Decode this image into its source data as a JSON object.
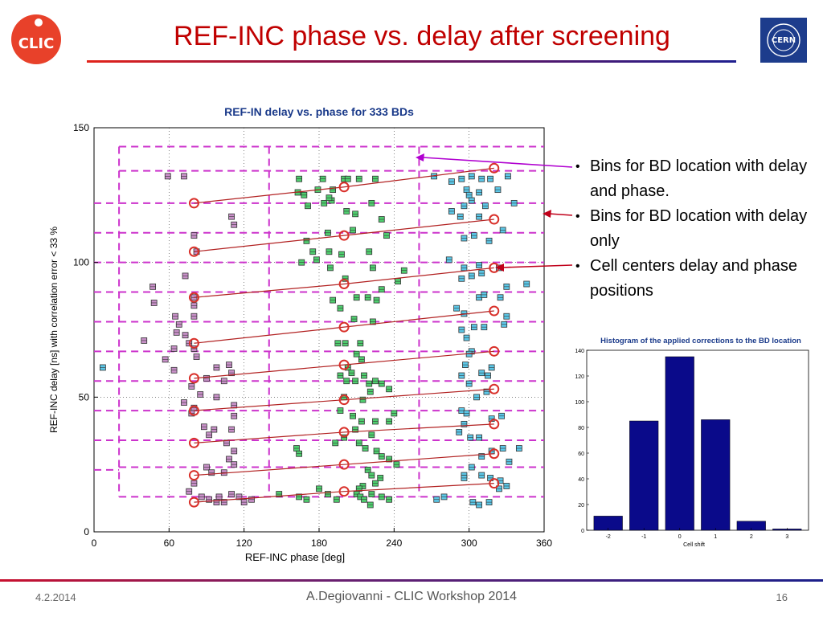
{
  "slide": {
    "title": "REF-INC phase vs. delay after screening",
    "bullets": [
      "Bins for BD location with delay and phase.",
      "Bins for BD location with delay only",
      "Cell centers delay and phase positions"
    ],
    "footer": {
      "date": "4.2.2014",
      "center": "A.Degiovanni - CLIC Workshop 2014",
      "page": "16"
    },
    "logos": {
      "left": "clic-logo",
      "left_text": "CLIC",
      "right": "cern-logo",
      "right_text": "CERN"
    }
  },
  "colors": {
    "title": "#c00000",
    "grid_dash": "#cc33cc",
    "cell_line": "#b22222",
    "cell_center": "#d9302a",
    "points_pink": "#c890c8",
    "points_green": "#4fcf6f",
    "points_cyan": "#5cc8e8",
    "bar": "#0a0a8a",
    "chart_title": "#1a3a8a",
    "arrow_violet": "#b000d0",
    "arrow_red": "#c0001a"
  },
  "chart_data": [
    {
      "type": "scatter",
      "title": "REF-IN delay vs. phase for 333 BDs",
      "xlabel": "REF-INC phase [deg]",
      "ylabel": "REF-INC delay [ns] with correlation error < 33 %",
      "xlim": [
        0,
        360
      ],
      "ylim": [
        0,
        150
      ],
      "xticks": [
        0,
        60,
        120,
        180,
        240,
        300,
        360
      ],
      "yticks": [
        0,
        50,
        100,
        150
      ],
      "grid": true,
      "phase_bin_edges": [
        20,
        140,
        260
      ],
      "delay_bin_edges": [
        13,
        24,
        34,
        45,
        56,
        67,
        78,
        89,
        100,
        111,
        122,
        134,
        143
      ],
      "cell_centers": [
        [
          [
            80,
            11
          ],
          [
            200,
            15
          ],
          [
            320,
            18
          ]
        ],
        [
          [
            80,
            21
          ],
          [
            200,
            25
          ],
          [
            320,
            29
          ]
        ],
        [
          [
            80,
            33
          ],
          [
            200,
            37
          ],
          [
            320,
            40
          ]
        ],
        [
          [
            80,
            45
          ],
          [
            200,
            49
          ],
          [
            320,
            53
          ]
        ],
        [
          [
            80,
            57
          ],
          [
            200,
            62
          ],
          [
            320,
            67
          ]
        ],
        [
          [
            80,
            70
          ],
          [
            200,
            76
          ],
          [
            320,
            82
          ]
        ],
        [
          [
            80,
            87
          ],
          [
            200,
            92
          ],
          [
            320,
            98
          ]
        ],
        [
          [
            80,
            104
          ],
          [
            200,
            110
          ],
          [
            320,
            116
          ]
        ],
        [
          [
            80,
            122
          ],
          [
            200,
            128
          ],
          [
            320,
            135
          ]
        ]
      ],
      "series": [
        {
          "color": "pink",
          "points": [
            [
              59,
              132
            ],
            [
              72,
              132
            ],
            [
              110,
              117
            ],
            [
              112,
              114
            ],
            [
              80,
              110
            ],
            [
              82,
              104
            ],
            [
              47,
              91
            ],
            [
              73,
              95
            ],
            [
              80,
              87
            ],
            [
              48,
              85
            ],
            [
              80,
              84
            ],
            [
              65,
              80
            ],
            [
              68,
              77
            ],
            [
              80,
              80
            ],
            [
              66,
              74
            ],
            [
              73,
              73
            ],
            [
              76,
              70
            ],
            [
              80,
              68
            ],
            [
              40,
              71
            ],
            [
              64,
              68
            ],
            [
              82,
              65
            ],
            [
              57,
              64
            ],
            [
              98,
              61
            ],
            [
              108,
              62
            ],
            [
              110,
              59
            ],
            [
              104,
              56
            ],
            [
              64,
              60
            ],
            [
              90,
              57
            ],
            [
              78,
              54
            ],
            [
              85,
              51
            ],
            [
              98,
              50
            ],
            [
              72,
              48
            ],
            [
              80,
              46
            ],
            [
              78,
              44
            ],
            [
              112,
              47
            ],
            [
              88,
              39
            ],
            [
              96,
              38
            ],
            [
              92,
              36
            ],
            [
              112,
              43
            ],
            [
              110,
              38
            ],
            [
              106,
              33
            ],
            [
              112,
              30
            ],
            [
              108,
              27
            ],
            [
              90,
              24
            ],
            [
              94,
              22
            ],
            [
              104,
              22
            ],
            [
              112,
              25
            ],
            [
              80,
              18
            ],
            [
              76,
              15
            ],
            [
              86,
              13
            ],
            [
              92,
              12
            ],
            [
              100,
              13
            ],
            [
              104,
              11
            ],
            [
              110,
              14
            ],
            [
              116,
              13
            ],
            [
              120,
              11
            ],
            [
              98,
              11
            ],
            [
              126,
              12
            ]
          ]
        },
        {
          "color": "green",
          "points": [
            [
              164,
              131
            ],
            [
              183,
              131
            ],
            [
              200,
              131
            ],
            [
              203,
              131
            ],
            [
              212,
              131
            ],
            [
              225,
              131
            ],
            [
              163,
              126
            ],
            [
              168,
              125
            ],
            [
              179,
              127
            ],
            [
              190,
              123
            ],
            [
              191,
              127
            ],
            [
              184,
              122
            ],
            [
              188,
              124
            ],
            [
              171,
              121
            ],
            [
              202,
              119
            ],
            [
              209,
              118
            ],
            [
              230,
              116
            ],
            [
              222,
              122
            ],
            [
              188,
              104
            ],
            [
              207,
              112
            ],
            [
              170,
              108
            ],
            [
              175,
              104
            ],
            [
              187,
              111
            ],
            [
              198,
              103
            ],
            [
              178,
              101
            ],
            [
              189,
              98
            ],
            [
              166,
              100
            ],
            [
              220,
              104
            ],
            [
              234,
              110
            ],
            [
              243,
              93
            ],
            [
              223,
              98
            ],
            [
              248,
              97
            ],
            [
              201,
              94
            ],
            [
              210,
              87
            ],
            [
              191,
              86
            ],
            [
              197,
              83
            ],
            [
              219,
              87
            ],
            [
              226,
              86
            ],
            [
              230,
              90
            ],
            [
              208,
              79
            ],
            [
              223,
              78
            ],
            [
              195,
              70
            ],
            [
              201,
              70
            ],
            [
              210,
              66
            ],
            [
              214,
              64
            ],
            [
              213,
              70
            ],
            [
              203,
              61
            ],
            [
              206,
              59
            ],
            [
              197,
              58
            ],
            [
              202,
              56
            ],
            [
              209,
              56
            ],
            [
              216,
              58
            ],
            [
              220,
              55
            ],
            [
              225,
              56
            ],
            [
              230,
              55
            ],
            [
              236,
              53
            ],
            [
              200,
              50
            ],
            [
              221,
              52
            ],
            [
              215,
              49
            ],
            [
              197,
              45
            ],
            [
              207,
              43
            ],
            [
              214,
              41
            ],
            [
              225,
              41
            ],
            [
              236,
              41
            ],
            [
              240,
              44
            ],
            [
              209,
              38
            ],
            [
              222,
              36
            ],
            [
              193,
              33
            ],
            [
              200,
              35
            ],
            [
              212,
              33
            ],
            [
              217,
              31
            ],
            [
              226,
              30
            ],
            [
              230,
              28
            ],
            [
              236,
              27
            ],
            [
              242,
              25
            ],
            [
              162,
              31
            ],
            [
              164,
              29
            ],
            [
              219,
              23
            ],
            [
              222,
              21
            ],
            [
              229,
              20
            ],
            [
              225,
              18
            ],
            [
              215,
              17
            ],
            [
              212,
              16
            ],
            [
              210,
              14
            ],
            [
              213,
              13
            ],
            [
              216,
              12
            ],
            [
              222,
              14
            ],
            [
              230,
              13
            ],
            [
              236,
              12
            ],
            [
              221,
              10
            ],
            [
              194,
              12
            ],
            [
              187,
              14
            ],
            [
              180,
              16
            ],
            [
              164,
              13
            ],
            [
              148,
              14
            ],
            [
              170,
              12
            ]
          ]
        },
        {
          "color": "cyan",
          "points": [
            [
              272,
              132
            ],
            [
              286,
              130
            ],
            [
              294,
              131
            ],
            [
              302,
              132
            ],
            [
              310,
              131
            ],
            [
              317,
              131
            ],
            [
              331,
              132
            ],
            [
              298,
              127
            ],
            [
              300,
              125
            ],
            [
              308,
              126
            ],
            [
              323,
              127
            ],
            [
              296,
              121
            ],
            [
              302,
              123
            ],
            [
              286,
              119
            ],
            [
              293,
              117
            ],
            [
              308,
              117
            ],
            [
              313,
              121
            ],
            [
              336,
              122
            ],
            [
              296,
              109
            ],
            [
              304,
              110
            ],
            [
              316,
              108
            ],
            [
              327,
              112
            ],
            [
              296,
              98
            ],
            [
              308,
              99
            ],
            [
              284,
              101
            ],
            [
              294,
              94
            ],
            [
              302,
              95
            ],
            [
              310,
              96
            ],
            [
              324,
              98
            ],
            [
              330,
              91
            ],
            [
              346,
              92
            ],
            [
              308,
              87
            ],
            [
              312,
              88
            ],
            [
              290,
              83
            ],
            [
              296,
              81
            ],
            [
              304,
              76
            ],
            [
              294,
              75
            ],
            [
              298,
              72
            ],
            [
              312,
              76
            ],
            [
              328,
              77
            ],
            [
              302,
              67
            ],
            [
              300,
              66
            ],
            [
              297,
              62
            ],
            [
              318,
              61
            ],
            [
              310,
              59
            ],
            [
              315,
              58
            ],
            [
              294,
              58
            ],
            [
              300,
              55
            ],
            [
              314,
              52
            ],
            [
              306,
              50
            ],
            [
              294,
              45
            ],
            [
              298,
              44
            ],
            [
              326,
              43
            ],
            [
              318,
              42
            ],
            [
              296,
              40
            ],
            [
              292,
              37
            ],
            [
              301,
              35
            ],
            [
              308,
              35
            ],
            [
              327,
              31
            ],
            [
              310,
              28
            ],
            [
              318,
              30
            ],
            [
              332,
              26
            ],
            [
              302,
              24
            ],
            [
              310,
              21
            ],
            [
              296,
              21
            ],
            [
              317,
              20
            ],
            [
              325,
              19
            ],
            [
              330,
              17
            ],
            [
              324,
              16
            ],
            [
              303,
              11
            ],
            [
              308,
              10
            ],
            [
              316,
              11
            ],
            [
              296,
              20
            ],
            [
              340,
              31
            ],
            [
              7,
              61
            ],
            [
              280,
              13
            ],
            [
              274,
              12
            ],
            [
              325,
              87
            ],
            [
              330,
              80
            ]
          ]
        }
      ]
    },
    {
      "type": "bar",
      "title": "Histogram of the applied corrections to the BD location",
      "xlabel": "Cell shift",
      "ylabel": "",
      "categories": [
        "-2",
        "-1",
        "0",
        "1",
        "2",
        "3"
      ],
      "values": [
        11,
        85,
        135,
        86,
        7,
        1
      ],
      "ylim": [
        0,
        140
      ],
      "yticks": [
        0,
        20,
        40,
        60,
        80,
        100,
        120,
        140
      ],
      "xticks": [
        -2,
        -1,
        0,
        1,
        2,
        3
      ],
      "grid": false
    }
  ]
}
